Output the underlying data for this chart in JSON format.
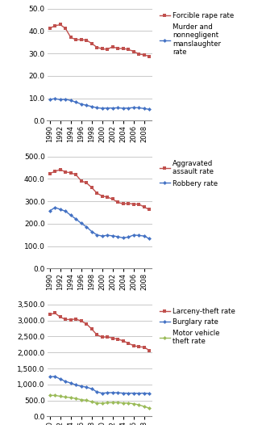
{
  "years": [
    1990,
    1991,
    1992,
    1993,
    1994,
    1995,
    1996,
    1997,
    1998,
    1999,
    2000,
    2001,
    2002,
    2003,
    2004,
    2005,
    2006,
    2007,
    2008,
    2009
  ],
  "forcible_rape": [
    41.2,
    42.3,
    42.8,
    41.1,
    37.1,
    36.1,
    36.1,
    35.9,
    34.4,
    32.7,
    32.0,
    31.8,
    33.0,
    32.1,
    32.2,
    31.7,
    30.9,
    29.7,
    29.3,
    28.7
  ],
  "murder": [
    9.4,
    9.8,
    9.3,
    9.5,
    9.0,
    8.2,
    7.4,
    6.8,
    6.3,
    5.7,
    5.5,
    5.6,
    5.6,
    5.7,
    5.5,
    5.6,
    5.8,
    5.7,
    5.4,
    5.0
  ],
  "aggravated_assault": [
    424.1,
    433.3,
    441.8,
    430.5,
    427.6,
    418.3,
    391.0,
    382.0,
    361.4,
    336.1,
    323.6,
    318.6,
    309.5,
    295.4,
    288.6,
    290.8,
    287.5,
    287.2,
    274.6,
    262.8
  ],
  "robbery": [
    257.0,
    272.7,
    263.7,
    255.9,
    237.7,
    220.9,
    201.9,
    186.2,
    165.2,
    150.1,
    145.0,
    148.5,
    145.9,
    142.2,
    136.7,
    140.7,
    149.4,
    147.6,
    145.3,
    133.0
  ],
  "larceny_theft": [
    3185.1,
    3229.1,
    3103.0,
    3032.4,
    3026.7,
    3043.8,
    2980.3,
    2891.8,
    2729.5,
    2550.7,
    2477.3,
    2485.7,
    2445.8,
    2415.8,
    2362.3,
    2286.3,
    2213.2,
    2177.8,
    2167.0,
    2060.9
  ],
  "burglary": [
    1235.9,
    1252.0,
    1168.2,
    1099.2,
    1042.0,
    987.1,
    943.0,
    918.8,
    863.2,
    770.4,
    728.4,
    741.8,
    747.0,
    740.5,
    730.3,
    726.7,
    729.4,
    722.5,
    730.8,
    716.3
  ],
  "motor_vehicle_theft": [
    657.8,
    659.0,
    631.5,
    606.1,
    591.3,
    560.4,
    525.9,
    505.7,
    459.9,
    422.5,
    412.2,
    430.5,
    432.9,
    433.7,
    421.5,
    416.8,
    398.4,
    363.3,
    314.7,
    258.8
  ],
  "panel1_ylim": [
    0,
    50
  ],
  "panel1_yticks": [
    0.0,
    10.0,
    20.0,
    30.0,
    40.0,
    50.0
  ],
  "panel2_ylim": [
    0,
    500
  ],
  "panel2_yticks": [
    0.0,
    100.0,
    200.0,
    300.0,
    400.0,
    500.0
  ],
  "panel3_ylim": [
    0,
    3500
  ],
  "panel3_yticks": [
    0.0,
    500.0,
    1000.0,
    1500.0,
    2000.0,
    2500.0,
    3000.0,
    3500.0
  ],
  "color_red": "#C0504D",
  "color_blue": "#4472C4",
  "color_green": "#9BBB59",
  "bg_color": "#FFFFFF",
  "grid_color": "#C0C0C0",
  "xtick_years": [
    1990,
    1992,
    1994,
    1996,
    1998,
    2000,
    2002,
    2004,
    2006,
    2008
  ]
}
